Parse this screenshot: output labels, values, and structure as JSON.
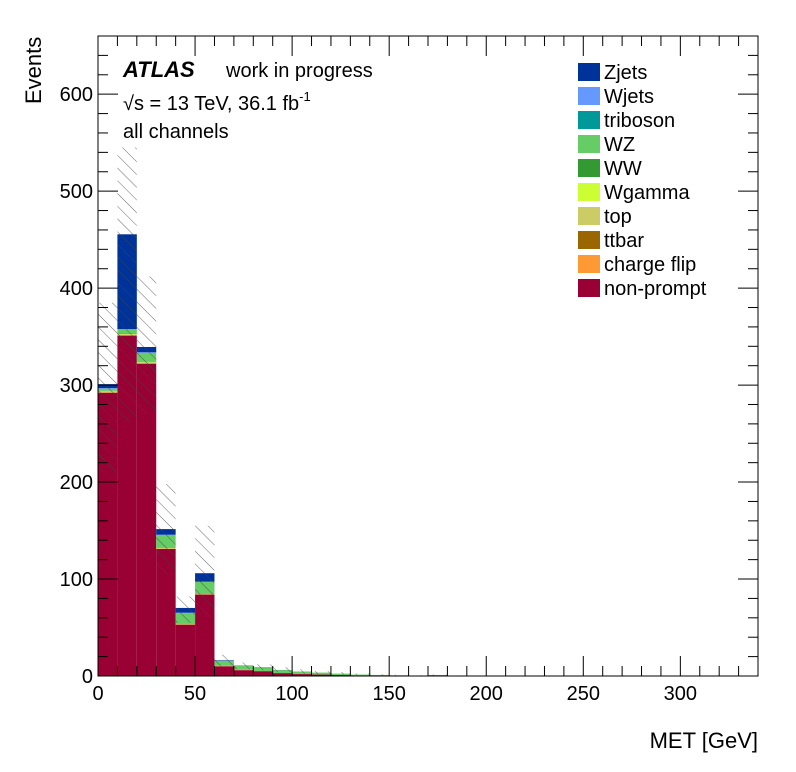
{
  "chart_data": {
    "type": "bar",
    "stacked": true,
    "xlabel": "MET [GeV]",
    "ylabel": "Events",
    "xlim": [
      0,
      340
    ],
    "ylim": [
      0,
      660
    ],
    "x_ticks": [
      0,
      50,
      100,
      150,
      200,
      250,
      300
    ],
    "x_tick_labels": [
      "0",
      "50",
      "100",
      "150",
      "200",
      "250",
      "300"
    ],
    "y_ticks": [
      0,
      100,
      200,
      300,
      400,
      500,
      600
    ],
    "y_tick_labels": [
      "0",
      "100",
      "200",
      "300",
      "400",
      "500",
      "600"
    ],
    "bin_edges": [
      0,
      10,
      20,
      30,
      40,
      50,
      60,
      70,
      80,
      90,
      100,
      110,
      120,
      130,
      140,
      150,
      160,
      170,
      180,
      190,
      200
    ],
    "series": [
      {
        "name": "non-prompt",
        "color": "#990033",
        "values": [
          292,
          351,
          322,
          131,
          53,
          84,
          10,
          6,
          5,
          3,
          2,
          1.5,
          1,
          0.5,
          0.3,
          0.2,
          0.2,
          0.8,
          0.2,
          0.1
        ]
      },
      {
        "name": "charge flip",
        "color": "#ff9933",
        "values": [
          0.5,
          0.5,
          0.5,
          0.3,
          0.2,
          0.2,
          0.1,
          0.1,
          0.1,
          0.1,
          0,
          0,
          0,
          0,
          0,
          0,
          0,
          0,
          0,
          0
        ]
      },
      {
        "name": "ttbar",
        "color": "#996600",
        "values": [
          0.3,
          0.3,
          0.3,
          0.2,
          0.1,
          0.1,
          0.1,
          0.1,
          0,
          0,
          0,
          0,
          0,
          0,
          0,
          0,
          0,
          0,
          0,
          0
        ]
      },
      {
        "name": "top",
        "color": "#cccc66",
        "values": [
          0.3,
          0.3,
          0.3,
          0.2,
          0.1,
          0.1,
          0.1,
          0,
          0,
          0,
          0,
          0,
          0,
          0,
          0,
          0,
          0,
          0,
          0,
          0
        ]
      },
      {
        "name": "Wgamma",
        "color": "#ccff33",
        "values": [
          0.5,
          0.5,
          0.5,
          0.3,
          0.2,
          0.2,
          0.1,
          0.1,
          0,
          0,
          0,
          0,
          0,
          0,
          0,
          0,
          0,
          0,
          0,
          0
        ]
      },
      {
        "name": "WW",
        "color": "#339933",
        "values": [
          0.5,
          0.5,
          0.5,
          0.3,
          0.3,
          0.3,
          0.2,
          0.1,
          0.1,
          0,
          0,
          0,
          0,
          0,
          0,
          0,
          0,
          0,
          0,
          0
        ]
      },
      {
        "name": "WZ",
        "color": "#66cc66",
        "values": [
          2,
          4,
          9,
          13,
          11,
          12,
          5,
          4,
          3.5,
          3,
          2.5,
          2,
          1.5,
          1,
          0.8,
          0.5,
          0.3,
          0.2,
          0.2,
          0.1
        ]
      },
      {
        "name": "triboson",
        "color": "#009999",
        "values": [
          0.2,
          0.2,
          0.2,
          0.1,
          0.1,
          0.1,
          0.1,
          0.1,
          0.1,
          0,
          0,
          0,
          0,
          0,
          0,
          0,
          0,
          0,
          0,
          0
        ]
      },
      {
        "name": "Wjets",
        "color": "#6699ff",
        "values": [
          0.5,
          0.5,
          0.5,
          0.3,
          0.3,
          0.3,
          0.1,
          0,
          0,
          0,
          0,
          0,
          0,
          0,
          0,
          0,
          0,
          0,
          0,
          0
        ]
      },
      {
        "name": "Zjets",
        "color": "#003399",
        "values": [
          4.2,
          97.7,
          5.5,
          5.8,
          4.9,
          8.7,
          0.5,
          0.3,
          0.2,
          0.1,
          0.1,
          0,
          0,
          0,
          0,
          0,
          0,
          0,
          0,
          0
        ]
      }
    ],
    "uncertainty_band": {
      "lower": [
        210,
        262,
        270,
        105,
        55,
        60,
        10,
        7,
        6,
        4,
        2.5,
        2,
        1.5,
        1,
        0.7,
        0.4,
        0.3,
        0.6,
        0.2,
        0.1
      ],
      "upper": [
        385,
        545,
        412,
        198,
        82,
        155,
        22,
        14,
        12,
        9,
        7,
        5,
        4,
        2.5,
        1.8,
        1.2,
        0.8,
        1.5,
        0.6,
        0.3
      ]
    },
    "legend": [
      "Zjets",
      "Wjets",
      "triboson",
      "WZ",
      "WW",
      "Wgamma",
      "top",
      "ttbar",
      "charge flip",
      "non-prompt"
    ],
    "legend_position": "top-right",
    "annotations": {
      "atlas": "ATLAS",
      "status": "work in progress",
      "sqrt": "√s",
      "energy": " = 13 TeV, 36.1 fb",
      "lumi_exp": "-1",
      "channel": "all channels"
    }
  }
}
